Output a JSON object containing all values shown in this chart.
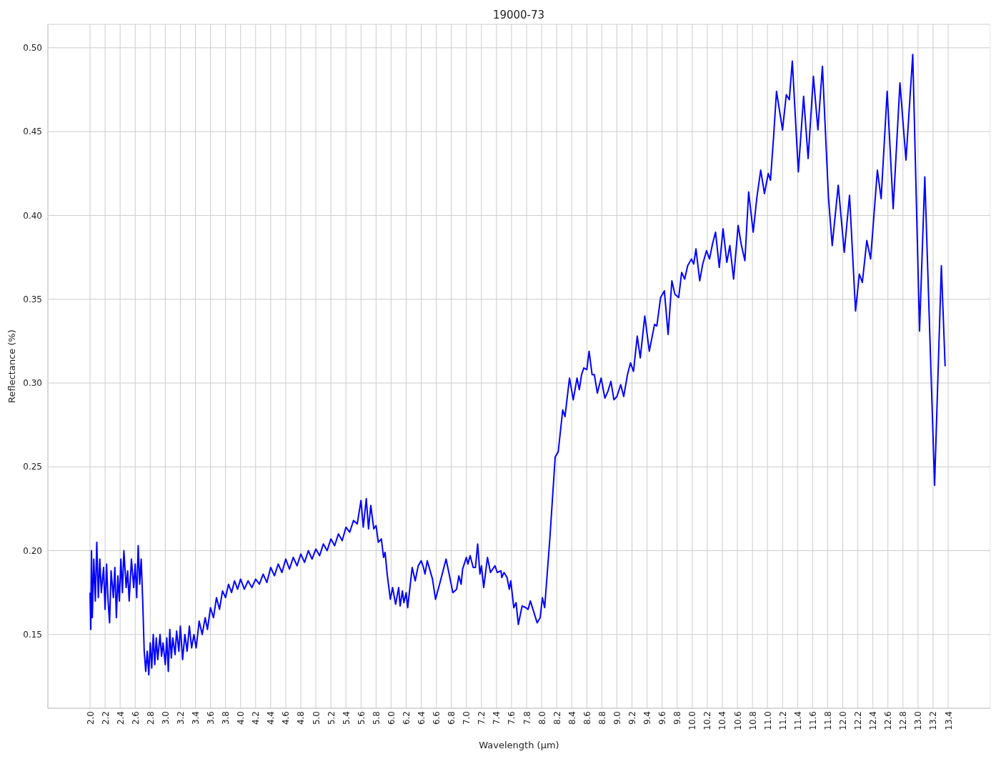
{
  "chart_data": {
    "type": "line",
    "title": "19000-73",
    "xlabel": "Wavelength (μm)",
    "ylabel": "Reflectance (%)",
    "x": [
      2.0,
      2.01,
      2.02,
      2.03,
      2.05,
      2.07,
      2.09,
      2.11,
      2.13,
      2.15,
      2.18,
      2.2,
      2.22,
      2.24,
      2.26,
      2.28,
      2.31,
      2.33,
      2.35,
      2.37,
      2.39,
      2.41,
      2.43,
      2.45,
      2.48,
      2.5,
      2.52,
      2.55,
      2.58,
      2.6,
      2.62,
      2.64,
      2.66,
      2.68,
      2.7,
      2.72,
      2.74,
      2.76,
      2.78,
      2.8,
      2.82,
      2.84,
      2.86,
      2.88,
      2.9,
      2.93,
      2.95,
      2.97,
      3.0,
      3.02,
      3.04,
      3.06,
      3.08,
      3.1,
      3.13,
      3.15,
      3.18,
      3.2,
      3.23,
      3.26,
      3.29,
      3.32,
      3.35,
      3.38,
      3.41,
      3.45,
      3.49,
      3.53,
      3.56,
      3.6,
      3.64,
      3.68,
      3.72,
      3.76,
      3.8,
      3.84,
      3.88,
      3.92,
      3.96,
      4.0,
      4.05,
      4.1,
      4.15,
      4.2,
      4.25,
      4.3,
      4.35,
      4.4,
      4.45,
      4.5,
      4.55,
      4.6,
      4.65,
      4.7,
      4.75,
      4.8,
      4.85,
      4.9,
      4.95,
      5.0,
      5.05,
      5.1,
      5.15,
      5.2,
      5.25,
      5.3,
      5.35,
      5.4,
      5.45,
      5.5,
      5.55,
      5.6,
      5.63,
      5.67,
      5.7,
      5.73,
      5.77,
      5.8,
      5.83,
      5.87,
      5.9,
      5.92,
      5.95,
      5.99,
      6.02,
      6.06,
      6.1,
      6.12,
      6.15,
      6.17,
      6.2,
      6.22,
      6.28,
      6.32,
      6.36,
      6.4,
      6.43,
      6.45,
      6.48,
      6.55,
      6.59,
      6.65,
      6.73,
      6.78,
      6.82,
      6.87,
      6.9,
      6.93,
      6.95,
      7.0,
      7.02,
      7.05,
      7.09,
      7.12,
      7.15,
      7.18,
      7.2,
      7.23,
      7.28,
      7.32,
      7.38,
      7.41,
      7.46,
      7.47,
      7.5,
      7.54,
      7.57,
      7.59,
      7.63,
      7.66,
      7.69,
      7.74,
      7.79,
      7.82,
      7.85,
      7.94,
      7.98,
      8.01,
      8.04,
      8.11,
      8.18,
      8.22,
      8.28,
      8.31,
      8.37,
      8.42,
      8.47,
      8.5,
      8.53,
      8.56,
      8.6,
      8.63,
      8.67,
      8.7,
      8.74,
      8.79,
      8.84,
      8.88,
      8.92,
      8.96,
      9.0,
      9.05,
      9.09,
      9.14,
      9.18,
      9.22,
      9.27,
      9.31,
      9.37,
      9.43,
      9.5,
      9.53,
      9.58,
      9.63,
      9.68,
      9.73,
      9.77,
      9.82,
      9.86,
      9.9,
      9.94,
      9.99,
      10.02,
      10.05,
      10.1,
      10.14,
      10.19,
      10.23,
      10.27,
      10.31,
      10.36,
      10.41,
      10.46,
      10.5,
      10.55,
      10.61,
      10.65,
      10.7,
      10.75,
      10.81,
      10.86,
      10.91,
      10.96,
      11.01,
      11.04,
      11.08,
      11.12,
      11.2,
      11.25,
      11.29,
      11.33,
      11.41,
      11.48,
      11.54,
      11.61,
      11.67,
      11.73,
      11.81,
      11.86,
      11.94,
      12.02,
      12.09,
      12.17,
      12.22,
      12.26,
      12.32,
      12.37,
      12.46,
      12.51,
      12.59,
      12.67,
      12.76,
      12.84,
      12.93,
      13.02,
      13.09,
      13.22,
      13.31,
      13.36
    ],
    "series": [
      {
        "color": "#0000ff",
        "values": [
          0.175,
          0.153,
          0.2,
          0.16,
          0.195,
          0.17,
          0.205,
          0.172,
          0.195,
          0.175,
          0.19,
          0.165,
          0.192,
          0.17,
          0.157,
          0.188,
          0.172,
          0.19,
          0.16,
          0.185,
          0.17,
          0.195,
          0.175,
          0.2,
          0.178,
          0.188,
          0.17,
          0.195,
          0.178,
          0.192,
          0.172,
          0.203,
          0.18,
          0.195,
          0.17,
          0.14,
          0.128,
          0.14,
          0.126,
          0.145,
          0.13,
          0.15,
          0.132,
          0.148,
          0.135,
          0.15,
          0.137,
          0.145,
          0.132,
          0.148,
          0.128,
          0.153,
          0.136,
          0.148,
          0.138,
          0.152,
          0.14,
          0.155,
          0.135,
          0.15,
          0.14,
          0.155,
          0.142,
          0.15,
          0.142,
          0.158,
          0.15,
          0.16,
          0.153,
          0.166,
          0.16,
          0.172,
          0.165,
          0.176,
          0.172,
          0.18,
          0.175,
          0.182,
          0.177,
          0.183,
          0.177,
          0.182,
          0.178,
          0.183,
          0.18,
          0.186,
          0.181,
          0.19,
          0.185,
          0.192,
          0.187,
          0.195,
          0.189,
          0.196,
          0.191,
          0.198,
          0.193,
          0.2,
          0.195,
          0.201,
          0.197,
          0.204,
          0.2,
          0.207,
          0.203,
          0.21,
          0.206,
          0.214,
          0.211,
          0.218,
          0.216,
          0.23,
          0.214,
          0.231,
          0.213,
          0.227,
          0.213,
          0.215,
          0.205,
          0.207,
          0.196,
          0.199,
          0.185,
          0.171,
          0.178,
          0.168,
          0.178,
          0.167,
          0.176,
          0.169,
          0.175,
          0.166,
          0.19,
          0.182,
          0.191,
          0.194,
          0.19,
          0.186,
          0.194,
          0.183,
          0.171,
          0.181,
          0.195,
          0.184,
          0.175,
          0.177,
          0.185,
          0.18,
          0.189,
          0.196,
          0.192,
          0.197,
          0.19,
          0.19,
          0.204,
          0.186,
          0.191,
          0.178,
          0.196,
          0.187,
          0.191,
          0.187,
          0.188,
          0.184,
          0.187,
          0.184,
          0.177,
          0.182,
          0.166,
          0.169,
          0.156,
          0.167,
          0.166,
          0.165,
          0.17,
          0.157,
          0.16,
          0.172,
          0.166,
          0.208,
          0.256,
          0.259,
          0.284,
          0.28,
          0.303,
          0.29,
          0.303,
          0.296,
          0.305,
          0.309,
          0.308,
          0.319,
          0.305,
          0.305,
          0.294,
          0.303,
          0.291,
          0.295,
          0.301,
          0.29,
          0.292,
          0.299,
          0.292,
          0.305,
          0.312,
          0.307,
          0.328,
          0.315,
          0.34,
          0.319,
          0.335,
          0.334,
          0.351,
          0.355,
          0.329,
          0.361,
          0.353,
          0.351,
          0.366,
          0.362,
          0.37,
          0.374,
          0.371,
          0.38,
          0.361,
          0.371,
          0.379,
          0.374,
          0.383,
          0.39,
          0.369,
          0.392,
          0.372,
          0.382,
          0.362,
          0.394,
          0.383,
          0.373,
          0.414,
          0.39,
          0.411,
          0.427,
          0.413,
          0.425,
          0.421,
          0.446,
          0.474,
          0.451,
          0.472,
          0.469,
          0.492,
          0.426,
          0.471,
          0.434,
          0.483,
          0.451,
          0.489,
          0.411,
          0.382,
          0.418,
          0.378,
          0.412,
          0.343,
          0.365,
          0.36,
          0.385,
          0.374,
          0.427,
          0.41,
          0.474,
          0.404,
          0.479,
          0.433,
          0.496,
          0.331,
          0.423,
          0.239,
          0.37,
          0.31
        ]
      }
    ],
    "xlim": [
      1.44,
      13.96
    ],
    "ylim": [
      0.106,
      0.514
    ],
    "xticks": [
      {
        "value": 2,
        "label": "2.0"
      },
      {
        "value": 2.2,
        "label": "2.2"
      },
      {
        "value": 2.4,
        "label": "2.4"
      },
      {
        "value": 2.6,
        "label": "2.6"
      },
      {
        "value": 2.8,
        "label": "2.8"
      },
      {
        "value": 3,
        "label": "3.0"
      },
      {
        "value": 3.2,
        "label": "3.2"
      },
      {
        "value": 3.4,
        "label": "3.4"
      },
      {
        "value": 3.6,
        "label": "3.6"
      },
      {
        "value": 3.8,
        "label": "3.8"
      },
      {
        "value": 4,
        "label": "4.0"
      },
      {
        "value": 4.2,
        "label": "4.2"
      },
      {
        "value": 4.4,
        "label": "4.4"
      },
      {
        "value": 4.6,
        "label": "4.6"
      },
      {
        "value": 4.8,
        "label": "4.8"
      },
      {
        "value": 5,
        "label": "5.0"
      },
      {
        "value": 5.2,
        "label": "5.2"
      },
      {
        "value": 5.4,
        "label": "5.4"
      },
      {
        "value": 5.6,
        "label": "5.6"
      },
      {
        "value": 5.8,
        "label": "5.8"
      },
      {
        "value": 6,
        "label": "6.0"
      },
      {
        "value": 6.2,
        "label": "6.2"
      },
      {
        "value": 6.4,
        "label": "6.4"
      },
      {
        "value": 6.6,
        "label": "6.6"
      },
      {
        "value": 6.8,
        "label": "6.8"
      },
      {
        "value": 7,
        "label": "7.0"
      },
      {
        "value": 7.2,
        "label": "7.2"
      },
      {
        "value": 7.4,
        "label": "7.4"
      },
      {
        "value": 7.6,
        "label": "7.6"
      },
      {
        "value": 7.8,
        "label": "7.8"
      },
      {
        "value": 8,
        "label": "8.0"
      },
      {
        "value": 8.2,
        "label": "8.2"
      },
      {
        "value": 8.4,
        "label": "8.4"
      },
      {
        "value": 8.6,
        "label": "8.6"
      },
      {
        "value": 8.8,
        "label": "8.8"
      },
      {
        "value": 9,
        "label": "9.0"
      },
      {
        "value": 9.2,
        "label": "9.2"
      },
      {
        "value": 9.4,
        "label": "9.4"
      },
      {
        "value": 9.6,
        "label": "9.6"
      },
      {
        "value": 9.8,
        "label": "9.8"
      },
      {
        "value": 10,
        "label": "10.0"
      },
      {
        "value": 10.2,
        "label": "10.2"
      },
      {
        "value": 10.4,
        "label": "10.4"
      },
      {
        "value": 10.6,
        "label": "10.6"
      },
      {
        "value": 10.8,
        "label": "10.8"
      },
      {
        "value": 11,
        "label": "11.0"
      },
      {
        "value": 11.2,
        "label": "11.2"
      },
      {
        "value": 11.4,
        "label": "11.4"
      },
      {
        "value": 11.6,
        "label": "11.6"
      },
      {
        "value": 11.8,
        "label": "11.8"
      },
      {
        "value": 12,
        "label": "12.0"
      },
      {
        "value": 12.2,
        "label": "12.2"
      },
      {
        "value": 12.4,
        "label": "12.4"
      },
      {
        "value": 12.6,
        "label": "12.6"
      },
      {
        "value": 12.8,
        "label": "12.8"
      },
      {
        "value": 13,
        "label": "13.0"
      },
      {
        "value": 13.2,
        "label": "13.2"
      },
      {
        "value": 13.4,
        "label": "13.4"
      }
    ],
    "yticks": [
      0.15,
      {
        "value": 0.2,
        "label": "0.20"
      },
      0.25,
      {
        "value": 0.3,
        "label": "0.30"
      },
      0.35,
      {
        "value": 0.4,
        "label": "0.40"
      },
      0.45,
      {
        "value": 0.5,
        "label": "0.50"
      }
    ],
    "grid": true,
    "line_style": "solid"
  }
}
